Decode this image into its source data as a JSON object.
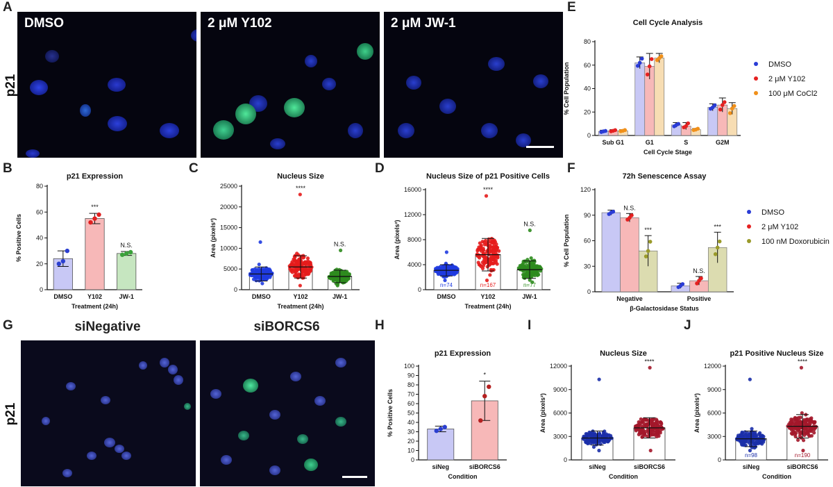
{
  "panels": {
    "A": {
      "label": "A",
      "row_label": "p21",
      "images": [
        "DMSO",
        "2 μM Y102",
        "2 μM JW-1"
      ]
    },
    "G": {
      "label": "G",
      "row_label": "p21",
      "headers": [
        "siNegative",
        "siBORCS6"
      ]
    },
    "B": "B",
    "C": "C",
    "D": "D",
    "E": "E",
    "F": "F",
    "H": "H",
    "I": "I",
    "J": "J"
  },
  "chart_data": [
    {
      "id": "B",
      "type": "bar",
      "title": "p21 Expression",
      "ylabel": "% Positive Cells",
      "xlabel": "Treatment (24h)",
      "categories": [
        "DMSO",
        "Y102",
        "JW-1"
      ],
      "values": [
        24,
        55,
        28
      ],
      "errors": [
        6,
        4,
        1.5
      ],
      "points": [
        [
          20,
          22,
          30
        ],
        [
          52,
          55,
          58
        ],
        [
          27,
          28,
          29
        ]
      ],
      "ylim": [
        0,
        80
      ],
      "yticks": [
        0,
        20,
        40,
        60,
        80
      ],
      "annotations": [
        "",
        "***",
        "N.S."
      ],
      "colors": [
        "#c8c8f5",
        "#f7b8b8",
        "#c6e6c0"
      ],
      "dot_colors": [
        "#2b3fd0",
        "#e02020",
        "#3aa23a"
      ]
    },
    {
      "id": "C",
      "type": "scatter",
      "title": "Nucleus Size",
      "ylabel": "Area (pixels²)",
      "xlabel": "Treatment (24h)",
      "categories": [
        "DMSO",
        "Y102",
        "JW-1"
      ],
      "values": [
        3800,
        5500,
        3200
      ],
      "sd": [
        1700,
        2700,
        1500
      ],
      "ylim": [
        0,
        25000
      ],
      "yticks": [
        0,
        5000,
        10000,
        15000,
        20000,
        25000
      ],
      "annotations": [
        "",
        "****",
        "N.S."
      ],
      "spread": [
        [
          1500,
          11500
        ],
        [
          1000,
          23000
        ],
        [
          1000,
          9500
        ]
      ],
      "dot_colors": [
        "#1f3be0",
        "#e51c1c",
        "#2e8b1e"
      ]
    },
    {
      "id": "D",
      "type": "scatter",
      "title": "Nucleus Size of p21 Positive Cells",
      "ylabel": "Area (pixels²)",
      "xlabel": "Treatment (24h)",
      "categories": [
        "DMSO",
        "Y102",
        "JW-1"
      ],
      "values": [
        3100,
        5600,
        3200
      ],
      "sd": [
        900,
        2600,
        1400
      ],
      "ylim": [
        0,
        16000
      ],
      "yticks": [
        0,
        4000,
        8000,
        12000,
        16000
      ],
      "annotations": [
        "",
        "****",
        "N.S."
      ],
      "counts": [
        "n=74",
        "n=167",
        "n=77"
      ],
      "spread": [
        [
          1500,
          6000
        ],
        [
          1500,
          15000
        ],
        [
          1200,
          9500
        ]
      ],
      "dot_colors": [
        "#1f3be0",
        "#e51c1c",
        "#2e8b1e"
      ]
    },
    {
      "id": "E",
      "type": "bar",
      "title": "Cell Cycle Analysis",
      "ylabel": "% Cell Population",
      "xlabel": "Cell Cycle Stage",
      "categories": [
        "Sub G1",
        "G1",
        "S",
        "G2M"
      ],
      "series": [
        {
          "name": "DMSO",
          "values": [
            3.5,
            62,
            9,
            24
          ],
          "errors": [
            1,
            5,
            2,
            3
          ]
        },
        {
          "name": "2 μM Y102",
          "values": [
            4,
            59,
            8,
            26
          ],
          "errors": [
            1,
            11,
            3,
            6
          ]
        },
        {
          "name": "100 μM CoCl2",
          "values": [
            4,
            66,
            5,
            23
          ],
          "errors": [
            1,
            4,
            1,
            5
          ]
        }
      ],
      "ylim": [
        0,
        80
      ],
      "yticks": [
        0,
        20,
        40,
        60,
        80
      ],
      "legend": "right",
      "bar_colors": [
        "#c8c8f5",
        "#f7b8b8",
        "#f7ddb3"
      ],
      "dot_colors": [
        "#2a3cd6",
        "#e52121",
        "#f0901a"
      ]
    },
    {
      "id": "F",
      "type": "bar",
      "title": "72h Senescence Assay",
      "ylabel": "% Cell Population",
      "xlabel": "β-Galactosidase Status",
      "categories": [
        "Negative",
        "Positive"
      ],
      "series": [
        {
          "name": "DMSO",
          "values": [
            93,
            7
          ],
          "errors": [
            3,
            3
          ]
        },
        {
          "name": "2 μM Y102",
          "values": [
            87,
            13
          ],
          "errors": [
            5,
            5
          ]
        },
        {
          "name": "100 nM Doxorubicin",
          "values": [
            48,
            52
          ],
          "errors": [
            18,
            18
          ]
        }
      ],
      "annotations": [
        [
          "",
          "N.S.",
          "***"
        ],
        [
          "",
          "N.S.",
          "***"
        ]
      ],
      "ylim": [
        0,
        120
      ],
      "yticks": [
        0,
        30,
        60,
        90,
        120
      ],
      "legend": "right",
      "bar_colors": [
        "#c8c8f5",
        "#f7b8b8",
        "#dcdcb0"
      ],
      "dot_colors": [
        "#2a3cd6",
        "#e52121",
        "#9a9a2a"
      ]
    },
    {
      "id": "H",
      "type": "bar",
      "title": "p21 Expression",
      "ylabel": "% Positive Cells",
      "xlabel": "Condition",
      "categories": [
        "siNeg",
        "siBORCS6"
      ],
      "values": [
        33,
        63
      ],
      "errors": [
        3,
        21
      ],
      "points": [
        [
          31,
          33,
          35
        ],
        [
          42,
          68,
          78
        ]
      ],
      "ylim": [
        0,
        100
      ],
      "yticks": [
        0,
        10,
        20,
        30,
        40,
        50,
        60,
        70,
        80,
        90,
        100
      ],
      "annotations": [
        "",
        "*"
      ],
      "colors": [
        "#c8c8f5",
        "#f7b8b8"
      ],
      "dot_colors": [
        "#2b3fd0",
        "#b41f1f"
      ]
    },
    {
      "id": "I",
      "type": "scatter",
      "title": "Nucleus Size",
      "ylabel": "Area (pixels²)",
      "xlabel": "Condition",
      "categories": [
        "siNeg",
        "siBORCS6"
      ],
      "values": [
        2800,
        4100
      ],
      "sd": [
        900,
        1300
      ],
      "ylim": [
        0,
        12000
      ],
      "yticks": [
        0,
        3000,
        6000,
        9000,
        12000
      ],
      "annotations": [
        "",
        "****"
      ],
      "spread": [
        [
          1200,
          10300
        ],
        [
          1200,
          11800
        ]
      ],
      "dot_colors": [
        "#1b2fa8",
        "#a3172a"
      ]
    },
    {
      "id": "J",
      "type": "scatter",
      "title": "p21 Positive Nucleus Size",
      "ylabel": "Area (pixels²)",
      "xlabel": "Condition",
      "categories": [
        "siNeg",
        "siBORCS6"
      ],
      "values": [
        2700,
        4300
      ],
      "sd": [
        1000,
        1500
      ],
      "ylim": [
        0,
        12000
      ],
      "yticks": [
        0,
        3000,
        6000,
        9000,
        12000
      ],
      "annotations": [
        "",
        "****"
      ],
      "counts": [
        "n=98",
        "n=190"
      ],
      "spread": [
        [
          1200,
          10300
        ],
        [
          1200,
          11800
        ]
      ],
      "dot_colors": [
        "#1b2fa8",
        "#a3172a"
      ]
    }
  ]
}
